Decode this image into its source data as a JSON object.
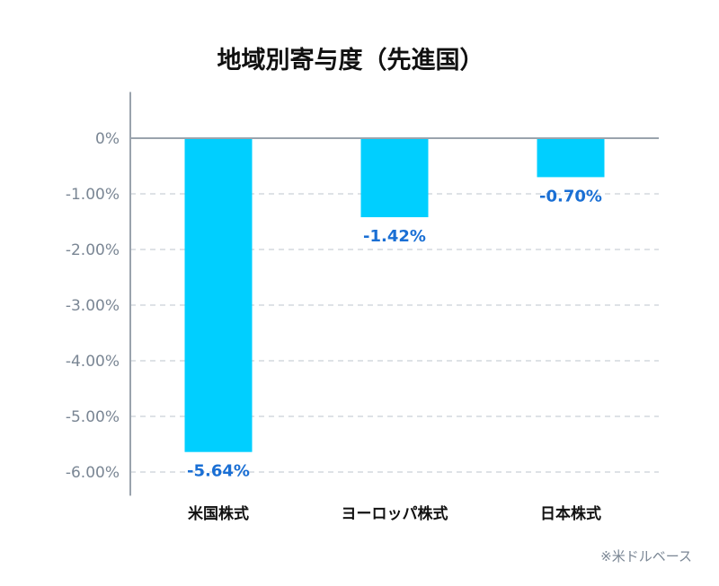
{
  "chart_data": {
    "type": "bar",
    "title": "地域別寄与度（先進国）",
    "categories": [
      "米国株式",
      "ヨーロッパ株式",
      "日本株式"
    ],
    "values": [
      -5.64,
      -1.42,
      -0.7
    ],
    "data_labels": [
      "-5.64%",
      "-1.42%",
      "-0.70%"
    ],
    "yticks": [
      0,
      -1,
      -2,
      -3,
      -4,
      -5,
      -6
    ],
    "ytick_labels": [
      "0%",
      "-1.00%",
      "-2.00%",
      "-3.00%",
      "-4.00%",
      "-5.00%",
      "-6.00%"
    ],
    "ylim": [
      -6.2,
      0.75
    ],
    "xlabel": "",
    "ylabel": "",
    "grid": true,
    "note": "※米ドルベース",
    "colors": {
      "bar": "#00cfff",
      "label": "#1a6fd4",
      "axis": "#9aa3ad",
      "grid": "#d4d9de"
    }
  }
}
